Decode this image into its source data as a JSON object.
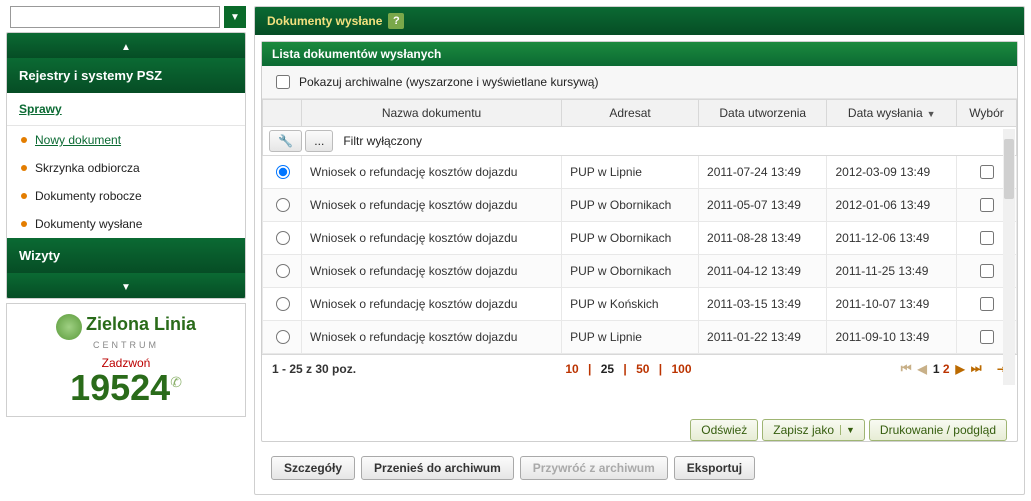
{
  "colors": {
    "darkGreen": "#0b6a33",
    "accentOrange": "#bb3300"
  },
  "left": {
    "section1": "Rejestry i systemy PSZ",
    "section2": "Wizyty",
    "group": {
      "title": "Sprawy",
      "items": [
        {
          "k": "nowy",
          "label": "Nowy dokument",
          "active": true
        },
        {
          "k": "inbox",
          "label": "Skrzynka odbiorcza"
        },
        {
          "k": "robocze",
          "label": "Dokumenty robocze"
        },
        {
          "k": "wyslane",
          "label": "Dokumenty wysłane"
        }
      ]
    },
    "promo": {
      "brand": "Zielona Linia",
      "sub": "CENTRUM",
      "call": "Zadzwoń",
      "num": "19524"
    }
  },
  "main": {
    "title": "Dokumenty wysłane",
    "panelTitle": "Lista dokumentów wysłanych",
    "archCheckbox": "Pokazuj archiwalne (wyszarzone i wyświetlane kursywą)",
    "cols": {
      "c1": "Nazwa dokumentu",
      "c2": "Adresat",
      "c3": "Data utworzenia",
      "c4": "Data wysłania",
      "c5": "Wybór"
    },
    "filterLabel": "Filtr wyłączony",
    "rows": [
      {
        "sel": true,
        "name": "Wniosek o refundację kosztów dojazdu",
        "addr": "PUP w Lipnie",
        "created": "2011-07-24 13:49",
        "sent": "2012-03-09 13:49"
      },
      {
        "sel": false,
        "name": "Wniosek o refundację kosztów dojazdu",
        "addr": "PUP w Obornikach",
        "created": "2011-05-07 13:49",
        "sent": "2012-01-06 13:49"
      },
      {
        "sel": false,
        "name": "Wniosek o refundację kosztów dojazdu",
        "addr": "PUP w Obornikach",
        "created": "2011-08-28 13:49",
        "sent": "2011-12-06 13:49"
      },
      {
        "sel": false,
        "name": "Wniosek o refundację kosztów dojazdu",
        "addr": "PUP w Obornikach",
        "created": "2011-04-12 13:49",
        "sent": "2011-11-25 13:49"
      },
      {
        "sel": false,
        "name": "Wniosek o refundację kosztów dojazdu",
        "addr": "PUP w Końskich",
        "created": "2011-03-15 13:49",
        "sent": "2011-10-07 13:49"
      },
      {
        "sel": false,
        "name": "Wniosek o refundację kosztów dojazdu",
        "addr": "PUP w Lipnie",
        "created": "2011-01-22 13:49",
        "sent": "2011-09-10 13:49"
      }
    ],
    "pager": {
      "summary": "1 - 25 z 30 poz.",
      "sizes": [
        "10",
        "25",
        "50",
        "100"
      ],
      "pages": [
        "1",
        "2"
      ],
      "current": "1"
    },
    "actRight": {
      "refresh": "Odśwież",
      "saveAs": "Zapisz jako",
      "print": "Drukowanie / podgląd"
    },
    "actions": {
      "details": "Szczegóły",
      "archive": "Przenieś do archiwum",
      "restore": "Przywróć z archiwum",
      "export": "Eksportuj"
    }
  }
}
